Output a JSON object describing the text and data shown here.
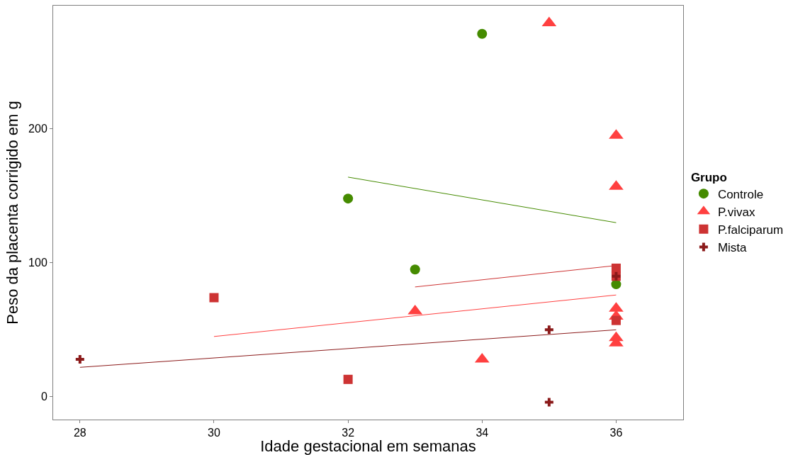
{
  "chart_data": {
    "type": "scatter",
    "xlabel": "Idade gestacional em semanas",
    "ylabel": "Peso da placenta corrigido em g",
    "legend_title": "Grupo",
    "legend": "right",
    "grid": false,
    "xlim": [
      27.6,
      37
    ],
    "xticks": [
      28,
      30,
      32,
      34,
      36
    ],
    "ylim": [
      -17,
      292
    ],
    "yticks": [
      0,
      100,
      200
    ],
    "series": [
      {
        "name": "Controle",
        "color": "#458b00",
        "marker": "circle",
        "x": [
          34,
          32,
          33,
          36
        ],
        "values": [
          271,
          148,
          95,
          84
        ]
      },
      {
        "name": "P.vivax",
        "color": "#ff4040",
        "marker": "triangle",
        "x": [
          35,
          36,
          36,
          33,
          36,
          36,
          34,
          36,
          36
        ],
        "values": [
          279,
          195,
          157,
          64,
          66,
          60,
          28,
          44,
          40
        ]
      },
      {
        "name": "P.falciparum",
        "color": "#cd3333",
        "marker": "square",
        "x": [
          30,
          32,
          36,
          36,
          36
        ],
        "values": [
          74,
          13,
          96,
          90,
          57
        ]
      },
      {
        "name": "Mista",
        "color": "#8b1a1a",
        "marker": "cross",
        "x": [
          28,
          35,
          35,
          36
        ],
        "values": [
          28,
          50,
          -4,
          90
        ]
      },
      {
        "type": "line",
        "color": "#458b00",
        "x": [
          32,
          36
        ],
        "values": [
          164,
          130
        ]
      },
      {
        "type": "line",
        "color": "#ff4040",
        "x": [
          30,
          36
        ],
        "values": [
          45,
          76
        ]
      },
      {
        "type": "line",
        "color": "#cd3333",
        "x": [
          33,
          36
        ],
        "values": [
          82,
          98
        ]
      },
      {
        "type": "line",
        "color": "#8b1a1a",
        "x": [
          28,
          36
        ],
        "values": [
          22,
          50
        ]
      }
    ]
  }
}
